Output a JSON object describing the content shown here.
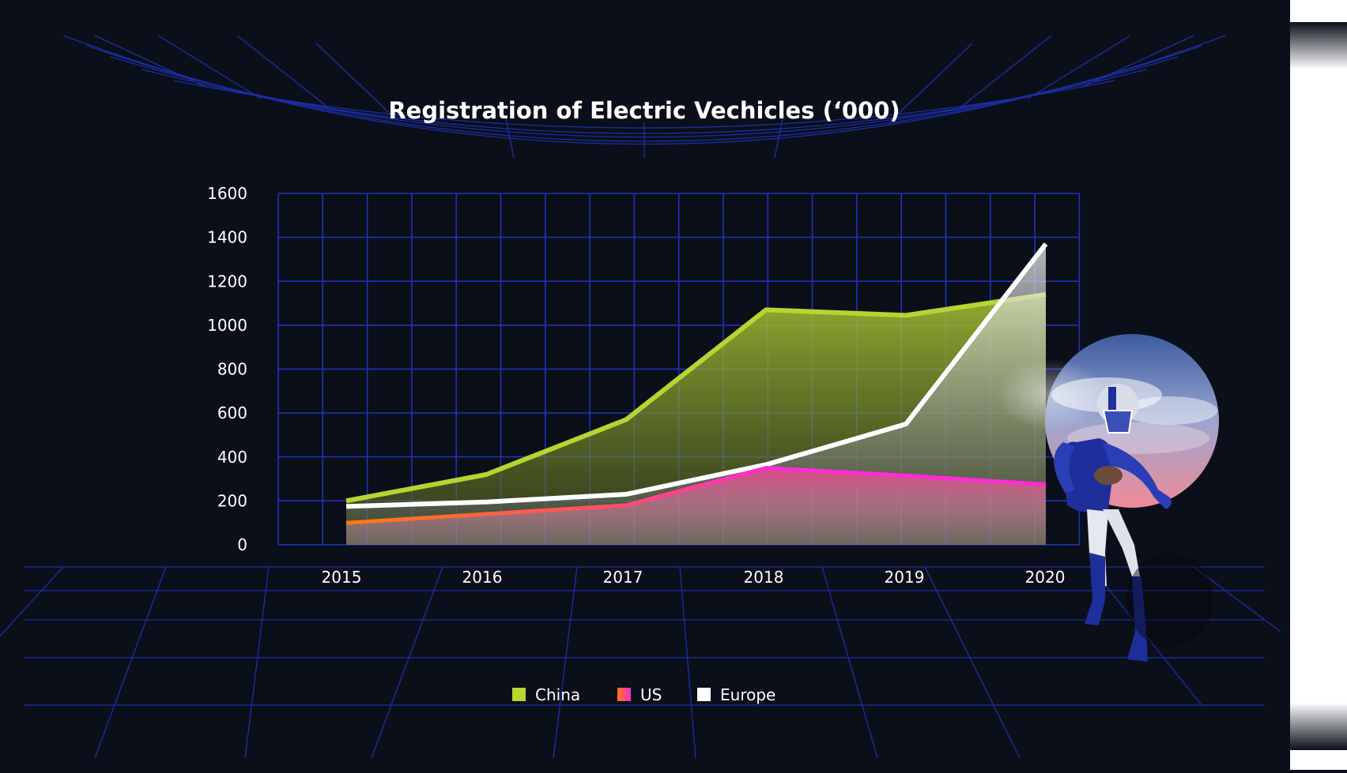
{
  "chart_data": {
    "type": "area",
    "title": "Registration of Electric Vechicles (‘000)",
    "xlabel": "",
    "ylabel": "",
    "categories": [
      "2015",
      "2016",
      "2017",
      "2018",
      "2019",
      "2020"
    ],
    "y_ticks": [
      "0",
      "200",
      "400",
      "600",
      "800",
      "1000",
      "1200",
      "1400",
      "1600"
    ],
    "ylim": [
      0,
      1600
    ],
    "grid": true,
    "legend_position": "bottom-center",
    "series": [
      {
        "name": "China",
        "values": [
          200,
          320,
          570,
          1070,
          1045,
          1140
        ],
        "color": "#b6d531"
      },
      {
        "name": "US",
        "values": [
          100,
          140,
          180,
          350,
          315,
          275
        ],
        "color": "#ff2bd6"
      },
      {
        "name": "Europe",
        "values": [
          175,
          195,
          230,
          365,
          550,
          1370
        ],
        "color": "#ffffff"
      }
    ]
  },
  "colors": {
    "background": "#0b0f19",
    "grid": "#1f33b8",
    "us_start": "#ff7a10"
  },
  "decorations": {
    "player_image": "football-player-icon"
  }
}
